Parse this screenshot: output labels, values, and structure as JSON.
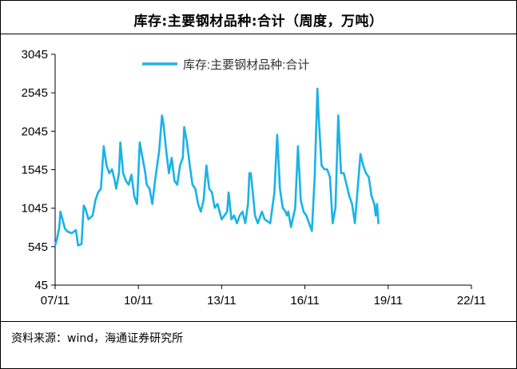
{
  "title": "库存:主要钢材品种:合计（周度，万吨）",
  "source": "资料来源：wind，海通证券研究所",
  "colors": {
    "series": "#1ab2e8",
    "axis": "#000000",
    "text": "#000000"
  },
  "chart_data": {
    "type": "line",
    "title": "库存:主要钢材品种:合计（周度，万吨）",
    "xlabel": "",
    "ylabel": "",
    "ylim": [
      45,
      3045
    ],
    "y_ticks": [
      "45",
      "545",
      "1045",
      "1545",
      "2045",
      "2545",
      "3045"
    ],
    "x_ticks": [
      "07/11",
      "10/11",
      "13/11",
      "16/11",
      "19/11",
      "22/11"
    ],
    "grid": false,
    "legend": "top-center",
    "series": [
      {
        "name": "库存:主要钢材品种:合计",
        "color": "#1ab2e8",
        "points": [
          [
            2007.85,
            560
          ],
          [
            2007.92,
            650
          ],
          [
            2008.0,
            800
          ],
          [
            2008.04,
            1000
          ],
          [
            2008.1,
            920
          ],
          [
            2008.2,
            780
          ],
          [
            2008.3,
            740
          ],
          [
            2008.45,
            720
          ],
          [
            2008.6,
            760
          ],
          [
            2008.68,
            560
          ],
          [
            2008.8,
            580
          ],
          [
            2008.88,
            1080
          ],
          [
            2008.95,
            1030
          ],
          [
            2009.05,
            900
          ],
          [
            2009.2,
            950
          ],
          [
            2009.3,
            1150
          ],
          [
            2009.4,
            1250
          ],
          [
            2009.5,
            1300
          ],
          [
            2009.6,
            1850
          ],
          [
            2009.7,
            1600
          ],
          [
            2009.8,
            1500
          ],
          [
            2009.9,
            1550
          ],
          [
            2010.0,
            1400
          ],
          [
            2010.05,
            1300
          ],
          [
            2010.15,
            1500
          ],
          [
            2010.2,
            1900
          ],
          [
            2010.3,
            1500
          ],
          [
            2010.4,
            1400
          ],
          [
            2010.5,
            1350
          ],
          [
            2010.6,
            1480
          ],
          [
            2010.7,
            1200
          ],
          [
            2010.8,
            1100
          ],
          [
            2010.9,
            1900
          ],
          [
            2011.0,
            1700
          ],
          [
            2011.1,
            1500
          ],
          [
            2011.15,
            1350
          ],
          [
            2011.25,
            1300
          ],
          [
            2011.35,
            1100
          ],
          [
            2011.45,
            1400
          ],
          [
            2011.6,
            1800
          ],
          [
            2011.7,
            2250
          ],
          [
            2011.75,
            2150
          ],
          [
            2011.85,
            1800
          ],
          [
            2011.95,
            1500
          ],
          [
            2012.05,
            1700
          ],
          [
            2012.15,
            1400
          ],
          [
            2012.25,
            1350
          ],
          [
            2012.35,
            1600
          ],
          [
            2012.45,
            1700
          ],
          [
            2012.5,
            2100
          ],
          [
            2012.6,
            1900
          ],
          [
            2012.7,
            1600
          ],
          [
            2012.8,
            1350
          ],
          [
            2012.9,
            1300
          ],
          [
            2013.0,
            1100
          ],
          [
            2013.1,
            1000
          ],
          [
            2013.2,
            1150
          ],
          [
            2013.3,
            1600
          ],
          [
            2013.4,
            1300
          ],
          [
            2013.5,
            1250
          ],
          [
            2013.6,
            1050
          ],
          [
            2013.7,
            1100
          ],
          [
            2013.85,
            900
          ],
          [
            2013.95,
            950
          ],
          [
            2014.05,
            1000
          ],
          [
            2014.1,
            1250
          ],
          [
            2014.2,
            900
          ],
          [
            2014.3,
            950
          ],
          [
            2014.4,
            850
          ],
          [
            2014.5,
            950
          ],
          [
            2014.6,
            1000
          ],
          [
            2014.7,
            850
          ],
          [
            2014.8,
            1100
          ],
          [
            2014.85,
            1500
          ],
          [
            2014.9,
            1500
          ],
          [
            2015.0,
            1150
          ],
          [
            2015.05,
            950
          ],
          [
            2015.15,
            850
          ],
          [
            2015.3,
            1000
          ],
          [
            2015.4,
            900
          ],
          [
            2015.6,
            850
          ],
          [
            2015.75,
            1250
          ],
          [
            2015.85,
            2000
          ],
          [
            2015.95,
            1300
          ],
          [
            2016.05,
            1050
          ],
          [
            2016.15,
            1000
          ],
          [
            2016.2,
            950
          ],
          [
            2016.25,
            1000
          ],
          [
            2016.35,
            800
          ],
          [
            2016.5,
            1050
          ],
          [
            2016.6,
            1850
          ],
          [
            2016.7,
            1150
          ],
          [
            2016.8,
            1000
          ],
          [
            2016.9,
            950
          ],
          [
            2017.0,
            850
          ],
          [
            2017.05,
            800
          ],
          [
            2017.1,
            750
          ],
          [
            2017.2,
            1450
          ],
          [
            2017.3,
            2600
          ],
          [
            2017.35,
            2200
          ],
          [
            2017.45,
            1600
          ],
          [
            2017.55,
            1550
          ],
          [
            2017.65,
            1550
          ],
          [
            2017.75,
            1450
          ],
          [
            2017.85,
            850
          ],
          [
            2017.95,
            1050
          ],
          [
            2018.05,
            2250
          ],
          [
            2018.15,
            1500
          ],
          [
            2018.25,
            1500
          ],
          [
            2018.35,
            1350
          ],
          [
            2018.45,
            1200
          ],
          [
            2018.55,
            1100
          ],
          [
            2018.65,
            850
          ],
          [
            2018.75,
            1300
          ],
          [
            2018.85,
            1750
          ],
          [
            2018.95,
            1600
          ],
          [
            2019.05,
            1500
          ],
          [
            2019.15,
            1450
          ],
          [
            2019.25,
            1200
          ],
          [
            2019.35,
            1100
          ],
          [
            2019.4,
            950
          ],
          [
            2019.45,
            1100
          ],
          [
            2019.5,
            850
          ]
        ]
      }
    ]
  }
}
